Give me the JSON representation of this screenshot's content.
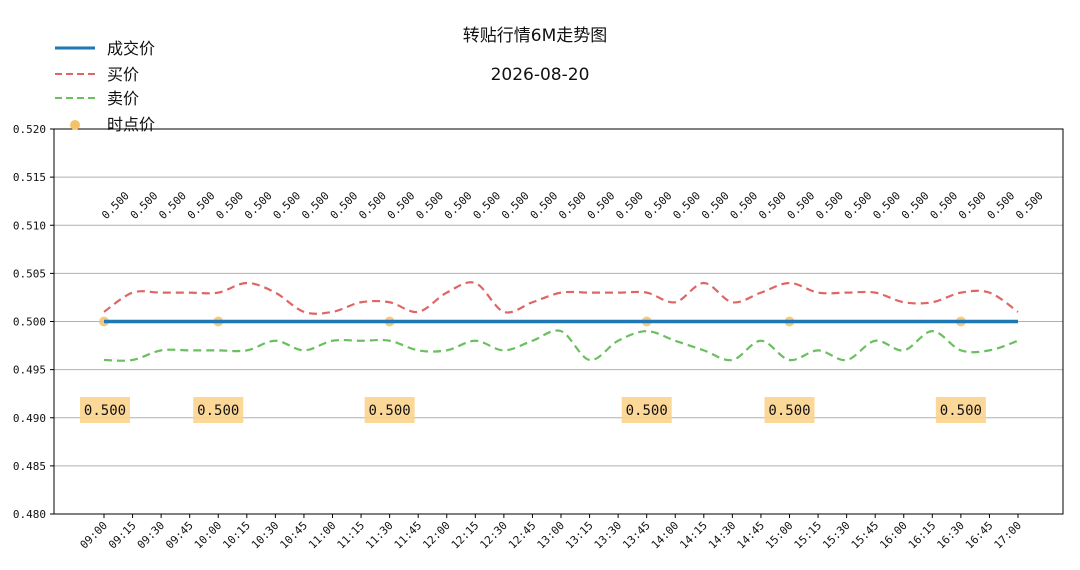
{
  "chart_data": {
    "type": "line",
    "title": "转贴行情6M走势图",
    "subtitle": "2026-08-20",
    "xlabel": "",
    "ylabel": "",
    "ylim": [
      0.48,
      0.52
    ],
    "y_ticks": [
      "0.480",
      "0.485",
      "0.490",
      "0.495",
      "0.500",
      "0.505",
      "0.510",
      "0.515",
      "0.520"
    ],
    "grid": true,
    "legend_position": "top-left",
    "x": [
      "09:00",
      "09:15",
      "09:30",
      "09:45",
      "10:00",
      "10:15",
      "10:30",
      "10:45",
      "11:00",
      "11:15",
      "11:30",
      "11:45",
      "12:00",
      "12:15",
      "12:30",
      "12:45",
      "13:00",
      "13:15",
      "13:30",
      "13:45",
      "14:00",
      "14:15",
      "14:30",
      "14:45",
      "15:00",
      "15:15",
      "15:30",
      "15:45",
      "16:00",
      "16:15",
      "16:30",
      "16:45",
      "17:00"
    ],
    "series": [
      {
        "name": "成交价",
        "style": "solid",
        "color": "#1f77b4",
        "values": [
          0.5,
          0.5,
          0.5,
          0.5,
          0.5,
          0.5,
          0.5,
          0.5,
          0.5,
          0.5,
          0.5,
          0.5,
          0.5,
          0.5,
          0.5,
          0.5,
          0.5,
          0.5,
          0.5,
          0.5,
          0.5,
          0.5,
          0.5,
          0.5,
          0.5,
          0.5,
          0.5,
          0.5,
          0.5,
          0.5,
          0.5,
          0.5,
          0.5
        ]
      },
      {
        "name": "买价",
        "style": "dashed",
        "color": "#d62728",
        "values": [
          0.501,
          0.503,
          0.503,
          0.503,
          0.503,
          0.504,
          0.503,
          0.501,
          0.501,
          0.502,
          0.502,
          0.501,
          0.503,
          0.504,
          0.501,
          0.502,
          0.503,
          0.503,
          0.503,
          0.503,
          0.502,
          0.504,
          0.502,
          0.503,
          0.504,
          0.503,
          0.503,
          0.503,
          0.502,
          0.502,
          0.503,
          0.503,
          0.501
        ]
      },
      {
        "name": "卖价",
        "style": "dashed",
        "color": "#2ca02c",
        "values": [
          0.496,
          0.496,
          0.497,
          0.497,
          0.497,
          0.497,
          0.498,
          0.497,
          0.498,
          0.498,
          0.498,
          0.497,
          0.497,
          0.498,
          0.497,
          0.498,
          0.499,
          0.496,
          0.498,
          0.499,
          0.498,
          0.497,
          0.496,
          0.498,
          0.496,
          0.497,
          0.496,
          0.498,
          0.497,
          0.499,
          0.497,
          0.497,
          0.498
        ]
      },
      {
        "name": "时点价",
        "style": "points",
        "color": "#f5c26b",
        "points": [
          {
            "x": "09:00",
            "y": 0.5
          },
          {
            "x": "10:00",
            "y": 0.5
          },
          {
            "x": "11:30",
            "y": 0.5
          },
          {
            "x": "13:45",
            "y": 0.5
          },
          {
            "x": "15:00",
            "y": 0.5
          },
          {
            "x": "16:30",
            "y": 0.5
          }
        ]
      }
    ],
    "data_labels": [
      "0.500",
      "0.500",
      "0.500",
      "0.500",
      "0.500",
      "0.500",
      "0.500",
      "0.500",
      "0.500",
      "0.500",
      "0.500",
      "0.500",
      "0.500",
      "0.500",
      "0.500",
      "0.500",
      "0.500",
      "0.500",
      "0.500",
      "0.500",
      "0.500",
      "0.500",
      "0.500",
      "0.500",
      "0.500",
      "0.500",
      "0.500",
      "0.500",
      "0.500",
      "0.500",
      "0.500",
      "0.500",
      "0.500"
    ],
    "point_labels": [
      "0.500",
      "0.500",
      "0.500",
      "0.500",
      "0.500",
      "0.500"
    ]
  }
}
